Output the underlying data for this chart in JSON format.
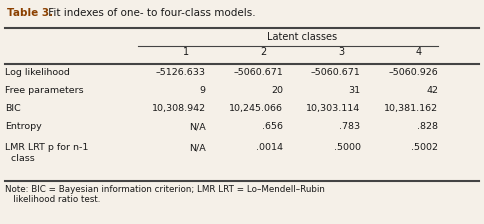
{
  "title_bold": "Table 3.",
  "title_rest": " Fit indexes of one- to four-class models.",
  "group_header": "Latent classes",
  "col_headers": [
    "1",
    "2",
    "3",
    "4"
  ],
  "row_labels": [
    "Log likelihood",
    "Free parameters",
    "BIC",
    "Entropy",
    "LMR LRT p for n-1\n  class"
  ],
  "data": [
    [
      "–5126.633",
      "–5060.671",
      "–5060.671",
      "–5060.926"
    ],
    [
      "9",
      "20",
      "31",
      "42"
    ],
    [
      "10,308.942",
      "10,245.066",
      "10,303.114",
      "10,381.162"
    ],
    [
      "N/A",
      ".656",
      ".783",
      ".828"
    ],
    [
      "N/A",
      ".0014",
      ".5000",
      ".5002"
    ]
  ],
  "note": "Note: BIC = Bayesian information criterion; LMR LRT = Lo–Mendell–Rubin\n   likelihood ratio test.",
  "bg_color": "#f5f0e8",
  "text_color": "#1a1a1a",
  "title_color": "#8b4000",
  "line_color": "#444444"
}
